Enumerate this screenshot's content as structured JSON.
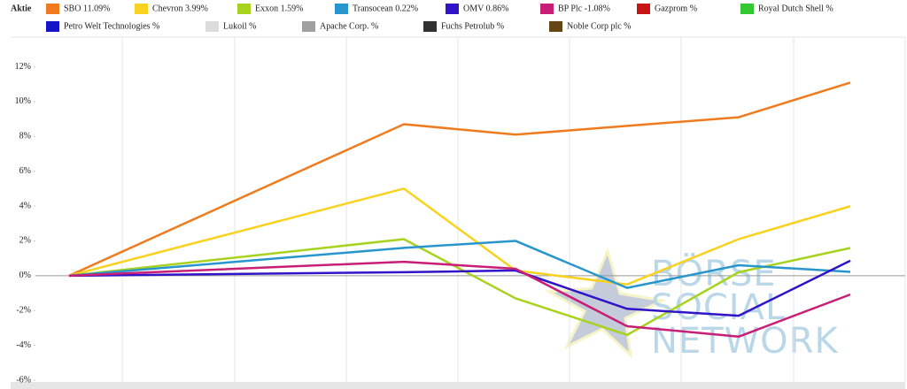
{
  "chart_data": {
    "type": "line",
    "legend_title": "Aktie",
    "x": [
      0,
      3,
      4,
      5,
      6,
      7
    ],
    "ylim": [
      -6.1,
      13.8
    ],
    "yticks": [
      {
        "value": -6,
        "label": "-6%"
      },
      {
        "value": -4,
        "label": "-4%"
      },
      {
        "value": -2,
        "label": "-2%"
      },
      {
        "value": 0,
        "label": "0%"
      },
      {
        "value": 2,
        "label": "2%"
      },
      {
        "value": 4,
        "label": "4%"
      },
      {
        "value": 6,
        "label": "6%"
      },
      {
        "value": 8,
        "label": "8%"
      },
      {
        "value": 10,
        "label": "10%"
      },
      {
        "value": 12,
        "label": "12%"
      }
    ],
    "series": [
      {
        "name": "SBO 11.09%",
        "color": "#f07b1e",
        "values": [
          0,
          8.7,
          8.1,
          8.6,
          9.1,
          11.09
        ]
      },
      {
        "name": "Chevron 3.99%",
        "color": "#f8d21e",
        "values": [
          0,
          5.0,
          0.3,
          -0.5,
          2.1,
          3.99
        ]
      },
      {
        "name": "Exxon 1.59%",
        "color": "#a7d21e",
        "values": [
          0,
          2.1,
          -1.3,
          -3.4,
          0.2,
          1.59
        ]
      },
      {
        "name": "Transocean 0.22%",
        "color": "#2896cd",
        "values": [
          0,
          1.6,
          2.0,
          -0.7,
          0.6,
          0.22
        ]
      },
      {
        "name": "OMV 0.86%",
        "color": "#3214c8",
        "values": [
          0,
          0.2,
          0.3,
          -1.9,
          -2.3,
          0.86
        ]
      },
      {
        "name": "BP Plc -1.08%",
        "color": "#c81e78",
        "values": [
          0,
          0.8,
          0.4,
          -2.9,
          -3.5,
          -1.08
        ]
      },
      {
        "name": "Gazprom %",
        "color": "#c81414",
        "values": [
          null,
          null,
          null,
          null,
          null,
          null
        ]
      },
      {
        "name": "Royal Dutch Shell %",
        "color": "#32c832",
        "values": [
          null,
          null,
          null,
          null,
          null,
          null
        ]
      },
      {
        "name": "Petro Welt Technologies %",
        "color": "#1414c8",
        "values": [
          null,
          null,
          null,
          null,
          null,
          null
        ]
      },
      {
        "name": "Lukoil %",
        "color": "#dcdcdc",
        "values": [
          null,
          null,
          null,
          null,
          null,
          null
        ]
      },
      {
        "name": "Apache Corp. %",
        "color": "#a0a0a0",
        "values": [
          null,
          null,
          null,
          null,
          null,
          null
        ]
      },
      {
        "name": "Fuchs Petrolub %",
        "color": "#323232",
        "values": [
          null,
          null,
          null,
          null,
          null,
          null
        ]
      },
      {
        "name": "Noble Corp plc %",
        "color": "#644614",
        "values": [
          null,
          null,
          null,
          null,
          null,
          null
        ]
      }
    ],
    "watermark": [
      "BÖRSE",
      "SOCIAL",
      "NETWORK"
    ]
  }
}
